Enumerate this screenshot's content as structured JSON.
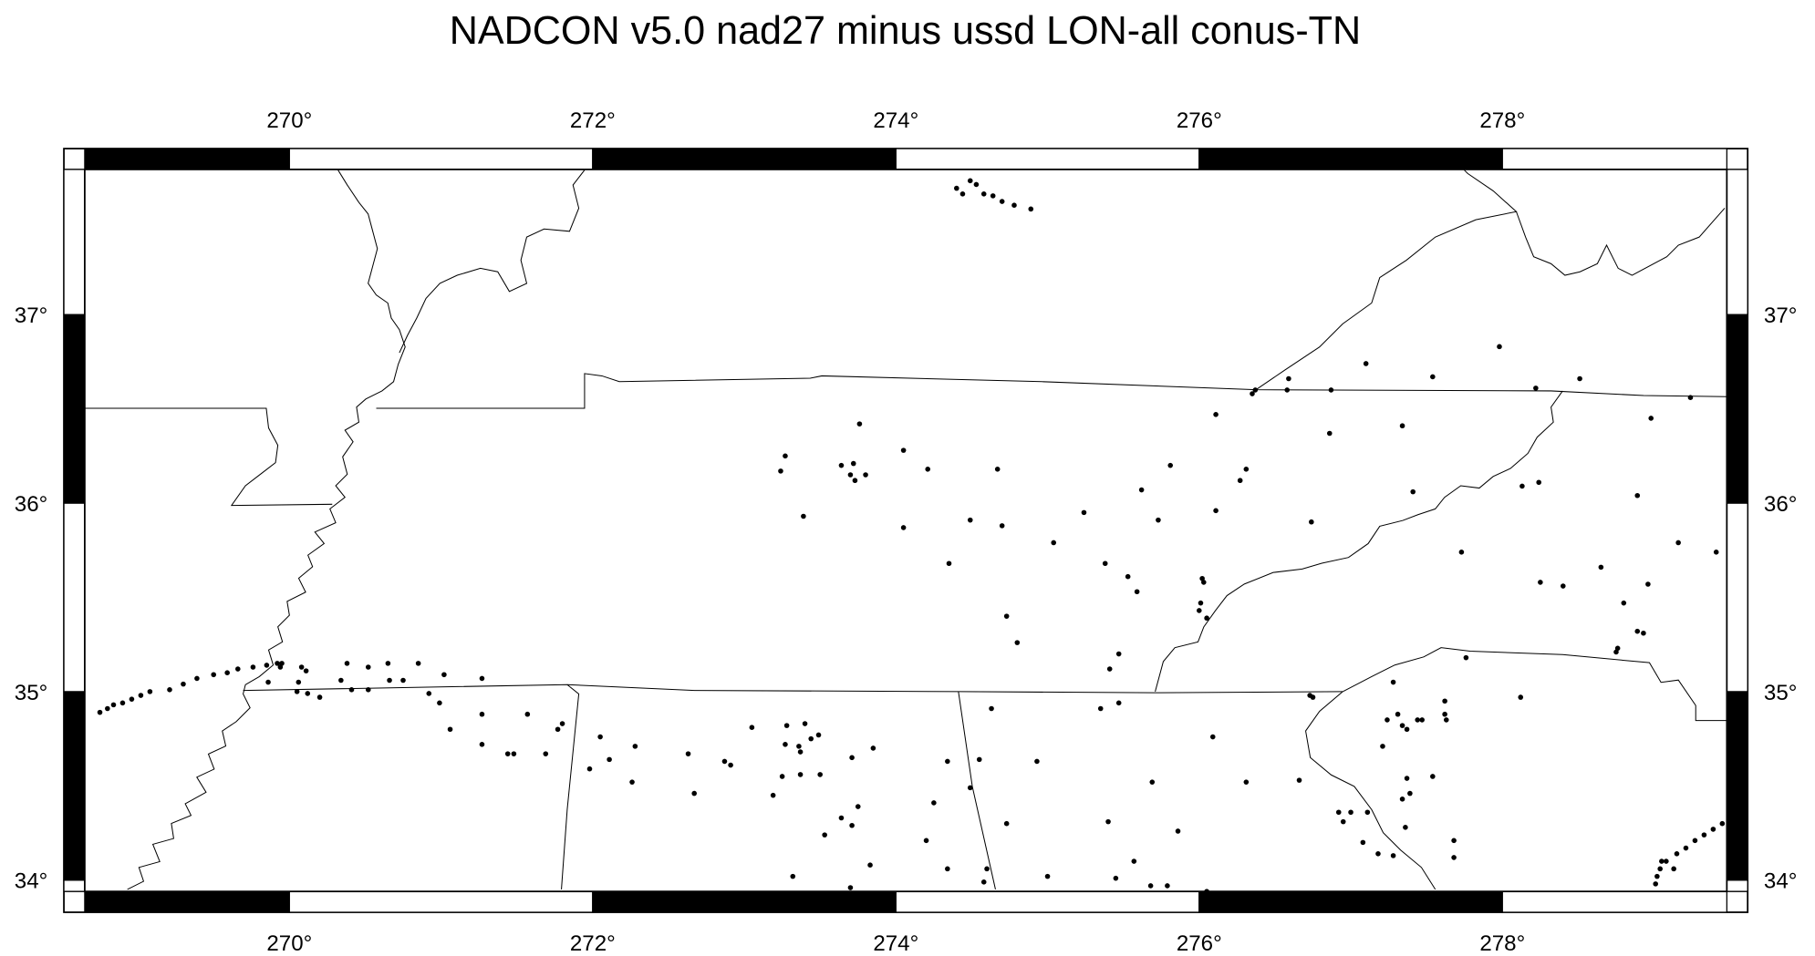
{
  "title": "NADCON v5.0 nad27 minus ussd LON-all  conus-TN",
  "chart_data": {
    "type": "scatter",
    "title": "NADCON v5.0 nad27 minus ussd LON-all  conus-TN",
    "xlim": [
      268.65,
      279.48
    ],
    "ylim": [
      33.94,
      37.77
    ],
    "x_ticks": [
      270,
      272,
      274,
      276,
      278
    ],
    "y_ticks": [
      34,
      35,
      36,
      37
    ],
    "x_tick_labels": [
      "270°",
      "272°",
      "274°",
      "276°",
      "278°"
    ],
    "y_tick_labels": [
      "34°",
      "35°",
      "36°",
      "37°"
    ],
    "grid": false,
    "frame_style": "alternating black/white border",
    "colors": {
      "points": "#000000",
      "boundaries": "#000000",
      "background": "#ffffff"
    },
    "points": [
      [
        274.4,
        37.67
      ],
      [
        274.44,
        37.64
      ],
      [
        274.49,
        37.71
      ],
      [
        274.53,
        37.69
      ],
      [
        274.58,
        37.64
      ],
      [
        274.64,
        37.63
      ],
      [
        274.7,
        37.6
      ],
      [
        274.78,
        37.58
      ],
      [
        274.89,
        37.56
      ],
      [
        277.98,
        36.83
      ],
      [
        277.1,
        36.74
      ],
      [
        277.54,
        36.67
      ],
      [
        278.51,
        36.66
      ],
      [
        276.59,
        36.66
      ],
      [
        276.37,
        36.6
      ],
      [
        276.35,
        36.58
      ],
      [
        276.58,
        36.6
      ],
      [
        276.87,
        36.6
      ],
      [
        278.22,
        36.61
      ],
      [
        279.24,
        36.56
      ],
      [
        276.11,
        36.47
      ],
      [
        278.98,
        36.45
      ],
      [
        276.86,
        36.37
      ],
      [
        277.34,
        36.41
      ],
      [
        273.76,
        36.42
      ],
      [
        274.05,
        36.28
      ],
      [
        273.27,
        36.25
      ],
      [
        273.24,
        36.17
      ],
      [
        273.64,
        36.2
      ],
      [
        273.72,
        36.21
      ],
      [
        273.7,
        36.15
      ],
      [
        273.8,
        36.15
      ],
      [
        273.73,
        36.12
      ],
      [
        274.21,
        36.18
      ],
      [
        274.67,
        36.18
      ],
      [
        275.81,
        36.2
      ],
      [
        276.31,
        36.18
      ],
      [
        276.27,
        36.12
      ],
      [
        275.62,
        36.07
      ],
      [
        277.41,
        36.06
      ],
      [
        278.13,
        36.09
      ],
      [
        278.24,
        36.11
      ],
      [
        278.89,
        36.04
      ],
      [
        273.39,
        35.93
      ],
      [
        275.24,
        35.95
      ],
      [
        276.11,
        35.96
      ],
      [
        274.49,
        35.91
      ],
      [
        274.7,
        35.88
      ],
      [
        274.05,
        35.87
      ],
      [
        275.73,
        35.91
      ],
      [
        276.74,
        35.9
      ],
      [
        279.16,
        35.79
      ],
      [
        275.04,
        35.79
      ],
      [
        277.73,
        35.74
      ],
      [
        279.41,
        35.74
      ],
      [
        274.35,
        35.68
      ],
      [
        275.38,
        35.68
      ],
      [
        275.53,
        35.61
      ],
      [
        275.59,
        35.53
      ],
      [
        276.02,
        35.6
      ],
      [
        276.03,
        35.58
      ],
      [
        278.65,
        35.66
      ],
      [
        278.25,
        35.58
      ],
      [
        278.4,
        35.56
      ],
      [
        278.96,
        35.57
      ],
      [
        278.8,
        35.47
      ],
      [
        276.01,
        35.47
      ],
      [
        276.0,
        35.43
      ],
      [
        276.05,
        35.39
      ],
      [
        274.73,
        35.4
      ],
      [
        274.8,
        35.26
      ],
      [
        278.89,
        35.32
      ],
      [
        278.93,
        35.31
      ],
      [
        278.76,
        35.23
      ],
      [
        278.75,
        35.21
      ],
      [
        277.76,
        35.18
      ],
      [
        275.47,
        35.2
      ],
      [
        275.41,
        35.12
      ],
      [
        278.12,
        34.97
      ],
      [
        277.28,
        35.05
      ],
      [
        276.73,
        34.98
      ],
      [
        268.75,
        34.89
      ],
      [
        268.8,
        34.91
      ],
      [
        268.84,
        34.93
      ],
      [
        268.9,
        34.94
      ],
      [
        268.96,
        34.96
      ],
      [
        269.02,
        34.98
      ],
      [
        269.08,
        35.0
      ],
      [
        269.21,
        35.01
      ],
      [
        269.3,
        35.04
      ],
      [
        269.39,
        35.07
      ],
      [
        269.5,
        35.09
      ],
      [
        269.59,
        35.1
      ],
      [
        269.66,
        35.12
      ],
      [
        269.76,
        35.13
      ],
      [
        269.85,
        35.14
      ],
      [
        269.92,
        35.15
      ],
      [
        269.95,
        35.15
      ],
      [
        269.94,
        35.13
      ],
      [
        270.08,
        35.13
      ],
      [
        270.11,
        35.11
      ],
      [
        269.86,
        35.05
      ],
      [
        270.06,
        35.05
      ],
      [
        270.38,
        35.15
      ],
      [
        270.52,
        35.13
      ],
      [
        270.65,
        35.15
      ],
      [
        270.85,
        35.15
      ],
      [
        271.02,
        35.09
      ],
      [
        271.27,
        35.07
      ],
      [
        270.34,
        35.06
      ],
      [
        270.66,
        35.06
      ],
      [
        270.75,
        35.06
      ],
      [
        270.41,
        35.01
      ],
      [
        270.52,
        35.01
      ],
      [
        270.05,
        35.0
      ],
      [
        270.12,
        34.99
      ],
      [
        270.2,
        34.97
      ],
      [
        270.92,
        34.99
      ],
      [
        270.99,
        34.94
      ],
      [
        271.06,
        34.8
      ],
      [
        271.27,
        34.88
      ],
      [
        271.57,
        34.88
      ],
      [
        271.8,
        34.83
      ],
      [
        271.77,
        34.8
      ],
      [
        271.27,
        34.72
      ],
      [
        271.44,
        34.67
      ],
      [
        271.48,
        34.67
      ],
      [
        271.69,
        34.67
      ],
      [
        272.05,
        34.76
      ],
      [
        272.28,
        34.71
      ],
      [
        271.98,
        34.59
      ],
      [
        272.11,
        34.64
      ],
      [
        272.26,
        34.52
      ],
      [
        272.63,
        34.67
      ],
      [
        272.67,
        34.46
      ],
      [
        272.87,
        34.63
      ],
      [
        272.91,
        34.61
      ],
      [
        273.05,
        34.81
      ],
      [
        273.28,
        34.82
      ],
      [
        273.4,
        34.83
      ],
      [
        273.27,
        34.72
      ],
      [
        273.36,
        34.71
      ],
      [
        273.37,
        34.68
      ],
      [
        273.44,
        34.75
      ],
      [
        273.49,
        34.77
      ],
      [
        273.19,
        34.45
      ],
      [
        273.25,
        34.55
      ],
      [
        273.37,
        34.56
      ],
      [
        273.5,
        34.56
      ],
      [
        273.71,
        34.65
      ],
      [
        273.85,
        34.7
      ],
      [
        273.75,
        34.39
      ],
      [
        273.71,
        34.29
      ],
      [
        273.64,
        34.33
      ],
      [
        273.53,
        34.24
      ],
      [
        273.83,
        34.08
      ],
      [
        273.32,
        34.02
      ],
      [
        273.7,
        33.96
      ],
      [
        274.34,
        34.63
      ],
      [
        274.55,
        34.64
      ],
      [
        274.93,
        34.63
      ],
      [
        274.49,
        34.49
      ],
      [
        274.25,
        34.41
      ],
      [
        274.73,
        34.3
      ],
      [
        274.2,
        34.21
      ],
      [
        274.34,
        34.06
      ],
      [
        274.6,
        34.06
      ],
      [
        274.58,
        33.99
      ],
      [
        275.0,
        34.02
      ],
      [
        274.63,
        34.91
      ],
      [
        275.35,
        34.91
      ],
      [
        275.47,
        34.94
      ],
      [
        276.09,
        34.76
      ],
      [
        276.31,
        34.52
      ],
      [
        275.69,
        34.52
      ],
      [
        276.66,
        34.53
      ],
      [
        275.4,
        34.31
      ],
      [
        275.86,
        34.26
      ],
      [
        275.57,
        34.1
      ],
      [
        275.45,
        34.01
      ],
      [
        275.68,
        33.97
      ],
      [
        275.79,
        33.97
      ],
      [
        276.05,
        33.94
      ],
      [
        276.75,
        34.97
      ],
      [
        277.31,
        34.88
      ],
      [
        277.34,
        34.82
      ],
      [
        277.24,
        34.85
      ],
      [
        277.37,
        34.8
      ],
      [
        277.44,
        34.85
      ],
      [
        277.47,
        34.85
      ],
      [
        277.62,
        34.95
      ],
      [
        277.62,
        34.88
      ],
      [
        277.63,
        34.85
      ],
      [
        277.21,
        34.71
      ],
      [
        277.37,
        34.54
      ],
      [
        277.39,
        34.46
      ],
      [
        277.34,
        34.43
      ],
      [
        277.54,
        34.55
      ],
      [
        276.92,
        34.36
      ],
      [
        276.95,
        34.31
      ],
      [
        277.0,
        34.36
      ],
      [
        277.11,
        34.36
      ],
      [
        277.36,
        34.28
      ],
      [
        277.08,
        34.2
      ],
      [
        277.18,
        34.14
      ],
      [
        277.28,
        34.13
      ],
      [
        277.68,
        34.21
      ],
      [
        277.68,
        34.12
      ],
      [
        279.05,
        34.1
      ],
      [
        279.13,
        34.06
      ],
      [
        279.01,
        33.98
      ],
      [
        279.02,
        34.02
      ],
      [
        279.04,
        34.06
      ],
      [
        279.08,
        34.1
      ],
      [
        279.15,
        34.14
      ],
      [
        279.21,
        34.17
      ],
      [
        279.27,
        34.21
      ],
      [
        279.33,
        34.24
      ],
      [
        279.39,
        34.27
      ],
      [
        279.45,
        34.3
      ]
    ]
  }
}
